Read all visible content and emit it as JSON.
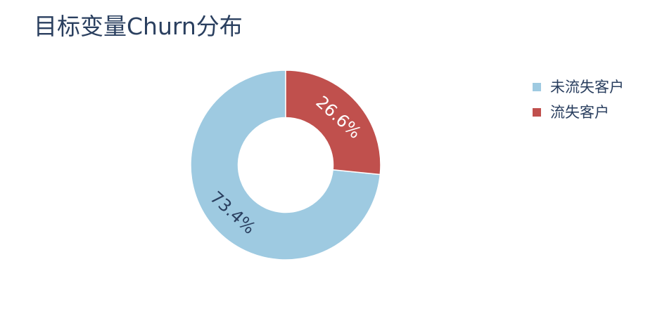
{
  "chart_data": {
    "type": "pie",
    "hole": 0.5,
    "title": "目标变量Churn分布",
    "categories": [
      "未流失客户",
      "流失客户"
    ],
    "values": [
      73.4,
      26.6
    ],
    "labels": [
      "73.4%",
      "26.6%"
    ],
    "colors": [
      "#9ecae1",
      "#c0504d"
    ],
    "label_colors": [
      "#2a3f5f",
      "#ffffff"
    ],
    "legend_position": "top-right"
  }
}
